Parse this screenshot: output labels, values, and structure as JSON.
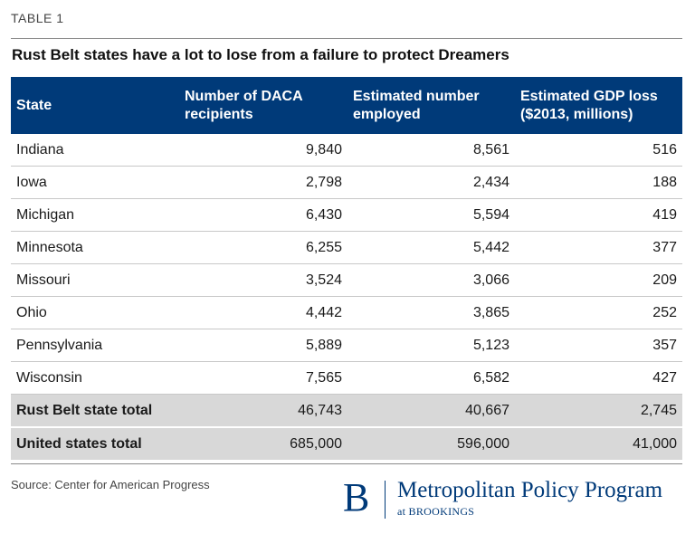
{
  "table_label": "TABLE 1",
  "title": "Rust Belt states have a lot to lose from a failure to protect Dreamers",
  "columns": [
    "State",
    "Number of DACA recipients",
    "Estimated number employed",
    "Estimated GDP loss ($2013, millions)"
  ],
  "rows": [
    {
      "state": "Indiana",
      "daca": "9,840",
      "employed": "8,561",
      "gdp_loss": "516"
    },
    {
      "state": "Iowa",
      "daca": "2,798",
      "employed": "2,434",
      "gdp_loss": "188"
    },
    {
      "state": "Michigan",
      "daca": "6,430",
      "employed": "5,594",
      "gdp_loss": "419"
    },
    {
      "state": "Minnesota",
      "daca": "6,255",
      "employed": "5,442",
      "gdp_loss": "377"
    },
    {
      "state": "Missouri",
      "daca": "3,524",
      "employed": "3,066",
      "gdp_loss": "209"
    },
    {
      "state": "Ohio",
      "daca": "4,442",
      "employed": "3,865",
      "gdp_loss": "252"
    },
    {
      "state": "Pennsylvania",
      "daca": "5,889",
      "employed": "5,123",
      "gdp_loss": "357"
    },
    {
      "state": "Wisconsin",
      "daca": "7,565",
      "employed": "6,582",
      "gdp_loss": "427"
    }
  ],
  "totals": [
    {
      "state": "Rust Belt state total",
      "daca": "46,743",
      "employed": "40,667",
      "gdp_loss": "2,745"
    },
    {
      "state": "United states total",
      "daca": "685,000",
      "employed": "596,000",
      "gdp_loss": "41,000"
    }
  ],
  "source": "Source: Center for American Progress",
  "logo": {
    "letter": "B",
    "name": "Metropolitan Policy Program",
    "sub": "at BROOKINGS"
  },
  "colors": {
    "header_bg": "#003a79",
    "total_bg": "#d8d8d8",
    "brand": "#003a79"
  }
}
